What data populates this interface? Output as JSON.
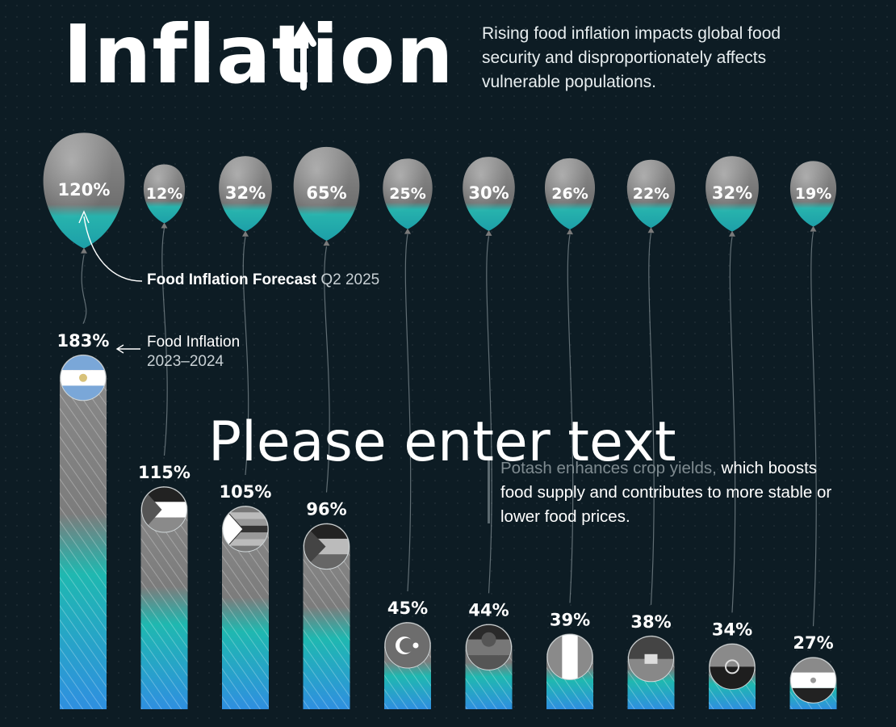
{
  "header": {
    "title": "Inflation",
    "subtitle": "Rising food inflation impacts global food security and disproportionately affects vulnerable populations."
  },
  "legend": {
    "forecast_label": "Food Inflation Forecast",
    "forecast_period": "Q2 2025",
    "inflation_label": "Food Inflation",
    "inflation_period": "2023–2024"
  },
  "overlay_text": "Please enter text",
  "note": {
    "highlight": "Potash enhances crop yields,",
    "rest": " which boosts food supply and contributes to more stable or lower food prices."
  },
  "colors": {
    "background": "#0d1c24",
    "balloon": "#7d7d7d",
    "bar_top": "#8a8a8a",
    "bar_teal": "#1fb8b0",
    "bar_blue": "#2f8fe0"
  },
  "chart_data": {
    "type": "bar",
    "series": [
      {
        "name": "Food Inflation 2023–2024",
        "values": [
          183,
          115,
          105,
          96,
          45,
          44,
          39,
          38,
          34,
          27
        ]
      },
      {
        "name": "Food Inflation Forecast Q2 2025",
        "values": [
          120,
          12,
          32,
          65,
          25,
          30,
          26,
          22,
          32,
          19
        ]
      }
    ],
    "bar_labels": [
      "183%",
      "115%",
      "105%",
      "96%",
      "45%",
      "44%",
      "39%",
      "38%",
      "34%",
      "27%"
    ],
    "balloon_labels": [
      "120%",
      "12%",
      "32%",
      "65%",
      "25%",
      "30%",
      "26%",
      "22%",
      "32%",
      "19%"
    ],
    "flags": [
      "argentina-flag",
      "palestine-flag",
      "zimbabwe-flag",
      "south-sudan-flag",
      "turkey-flag",
      "malawi-flag",
      "nigeria-flag",
      "haiti-flag",
      "angola-flag",
      "egypt-flag"
    ]
  }
}
